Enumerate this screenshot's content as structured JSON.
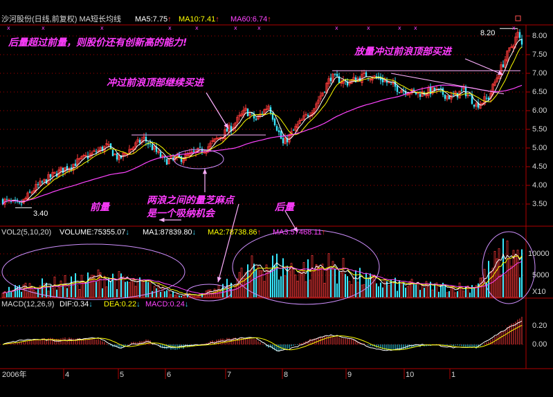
{
  "header": {
    "title": "沙河股份(日线,前复权) MA短长均线",
    "ma5": "MA5:7.75",
    "ma10": "MA10:7.41",
    "ma60": "MA60:6.74",
    "up_arrow": "↑"
  },
  "volume_panel": {
    "title": "VOL2(5,10,20)",
    "volume": "VOLUME:75355.07",
    "ma1": "MA1:87839.80",
    "ma2": "MA2:78738.86",
    "ma3": "MA3:57468.11",
    "up_arrow": "↑",
    "down_arrow": "↓"
  },
  "macd_panel": {
    "title": "MACD(12,26,9)",
    "dif": "DIF:0.34",
    "dea": "DEA:0.22",
    "macd": "MACD:0.24",
    "down_arrow": "↓"
  },
  "axes": {
    "price_ticks": [
      "8.00",
      "7.50",
      "7.00",
      "6.50",
      "6.00",
      "5.50",
      "5.00",
      "4.50",
      "4.00",
      "3.50"
    ],
    "volume_ticks": [
      "10000",
      "5000"
    ],
    "volume_unit": "X10",
    "macd_ticks": [
      "0.20",
      "0.00"
    ],
    "months": [
      "2006年",
      "4",
      "5",
      "6",
      "7",
      "8",
      "9",
      "10",
      "1"
    ]
  },
  "labels": {
    "high": "8.20",
    "low": "3.40"
  },
  "annotations": [
    "后量超过前量，则股价还有创新高的能力!",
    "冲过前浪顶部继续买进",
    "放量冲过前浪顶部买进",
    "两浪之间的量芝麻点",
    "是一个吸纳机会",
    "前量",
    "后量"
  ],
  "colors": {
    "up": "#ff3b3b",
    "down": "#38e8ff",
    "ma5": "#ffffff",
    "ma10": "#ffff00",
    "ma60": "#ff44ff",
    "annotation": "#ff3cff",
    "grid": "#b00000"
  },
  "chart_data": [
    {
      "type": "candlestick",
      "title": "沙河股份(日线,前复权) MA短长均线",
      "ylim": [
        3.3,
        8.3
      ],
      "price_anchors": [
        [
          0,
          3.6
        ],
        [
          8,
          3.45
        ],
        [
          15,
          3.9
        ],
        [
          25,
          4.3
        ],
        [
          40,
          4.75
        ],
        [
          50,
          5.05
        ],
        [
          56,
          4.7
        ],
        [
          62,
          5.0
        ],
        [
          68,
          5.25
        ],
        [
          78,
          4.65
        ],
        [
          88,
          4.75
        ],
        [
          98,
          5.0
        ],
        [
          110,
          5.55
        ],
        [
          117,
          6.0
        ],
        [
          122,
          5.75
        ],
        [
          128,
          6.15
        ],
        [
          135,
          5.1
        ],
        [
          142,
          5.6
        ],
        [
          150,
          6.1
        ],
        [
          158,
          6.9
        ],
        [
          166,
          6.75
        ],
        [
          175,
          6.95
        ],
        [
          182,
          6.85
        ],
        [
          190,
          6.6
        ],
        [
          200,
          6.45
        ],
        [
          208,
          6.55
        ],
        [
          216,
          6.35
        ],
        [
          222,
          6.55
        ],
        [
          228,
          6.15
        ],
        [
          234,
          6.35
        ],
        [
          238,
          6.9
        ],
        [
          243,
          7.5
        ],
        [
          248,
          8.05
        ],
        [
          250,
          7.75
        ]
      ],
      "series": [
        {
          "name": "MA5",
          "value": 7.75
        },
        {
          "name": "MA10",
          "value": 7.41
        },
        {
          "name": "MA60",
          "value": 6.74
        }
      ],
      "high": 8.2,
      "low": 3.4
    },
    {
      "type": "bar",
      "title": "VOL2(5,10,20)",
      "ylim": [
        0,
        14000
      ],
      "volume_anchors": [
        [
          0,
          1500
        ],
        [
          10,
          2500
        ],
        [
          20,
          3000
        ],
        [
          40,
          4000
        ],
        [
          50,
          5000
        ],
        [
          60,
          3500
        ],
        [
          70,
          3000
        ],
        [
          85,
          800
        ],
        [
          95,
          600
        ],
        [
          105,
          2000
        ],
        [
          115,
          5000
        ],
        [
          125,
          8000
        ],
        [
          135,
          7000
        ],
        [
          145,
          6500
        ],
        [
          155,
          7500
        ],
        [
          165,
          6000
        ],
        [
          175,
          4000
        ],
        [
          190,
          3000
        ],
        [
          205,
          2600
        ],
        [
          225,
          2400
        ],
        [
          232,
          5000
        ],
        [
          238,
          8000
        ],
        [
          245,
          11000
        ],
        [
          250,
          8000
        ]
      ],
      "volume": 75355.07,
      "ma1": 87839.8,
      "ma2": 78738.86,
      "ma3": 57468.11
    },
    {
      "type": "bar",
      "title": "MACD(12,26,9)",
      "ylim": [
        -0.15,
        0.32
      ],
      "macd_anchors": [
        [
          0,
          0.0
        ],
        [
          10,
          0.03
        ],
        [
          20,
          0.06
        ],
        [
          32,
          0.07
        ],
        [
          45,
          0.06
        ],
        [
          56,
          -0.05
        ],
        [
          62,
          0.02
        ],
        [
          70,
          0.05
        ],
        [
          78,
          -0.05
        ],
        [
          85,
          -0.05
        ],
        [
          95,
          0.0
        ],
        [
          105,
          0.06
        ],
        [
          115,
          0.07
        ],
        [
          122,
          0.05
        ],
        [
          132,
          -0.08
        ],
        [
          140,
          -0.02
        ],
        [
          150,
          0.07
        ],
        [
          158,
          0.09
        ],
        [
          168,
          0.06
        ],
        [
          178,
          -0.02
        ],
        [
          188,
          -0.07
        ],
        [
          198,
          -0.03
        ],
        [
          210,
          0.0
        ],
        [
          220,
          -0.02
        ],
        [
          228,
          -0.04
        ],
        [
          235,
          0.05
        ],
        [
          243,
          0.18
        ],
        [
          250,
          0.3
        ]
      ],
      "dif": 0.34,
      "dea": 0.22,
      "macd": 0.24
    }
  ]
}
